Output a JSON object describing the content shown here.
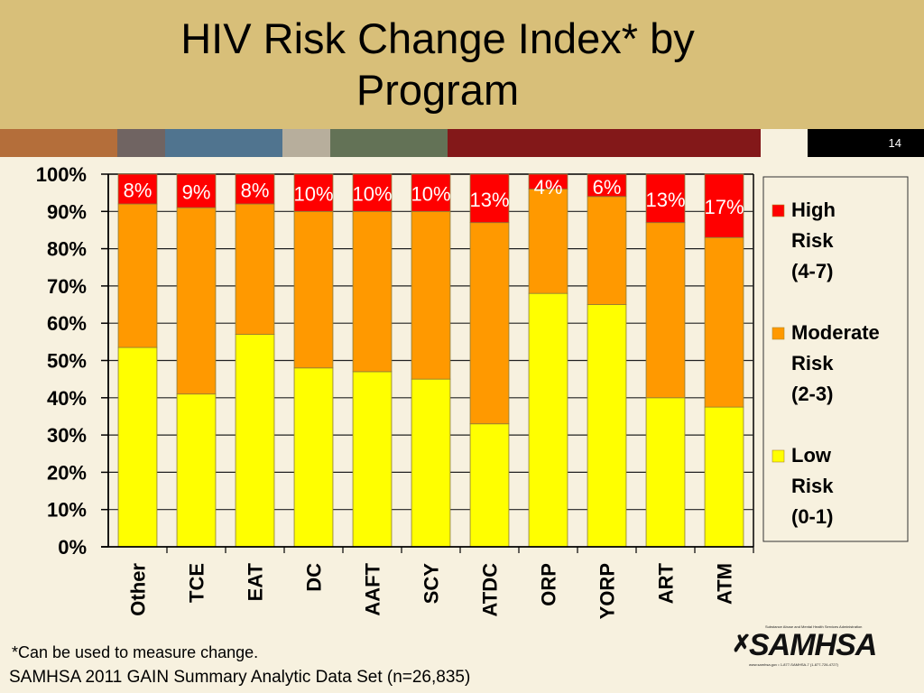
{
  "header": {
    "title_line1": "HIV Risk Change Index* by",
    "title_line2": "Program",
    "page_number": "14",
    "stripe_colors": [
      "#b46e3a",
      "#706462",
      "#50748f",
      "#b7ae9c",
      "#637256",
      "#831819",
      "#f7f1df"
    ]
  },
  "footer": {
    "footnote": "*Can be used to measure change.",
    "source": "SAMHSA 2011 GAIN Summary Analytic Data Set (n=26,835)",
    "logo": {
      "wordmark": "SAMHSA",
      "tagline": "Substance Abuse and Mental Health Services Administration",
      "contact": "www.samhsa.gov • 1-877-SAMHSA-7 (1-877-726-4727)"
    }
  },
  "chart_data": {
    "type": "bar",
    "stacked": true,
    "percent_stacked": true,
    "title": "HIV Risk Change Index* by Program",
    "xlabel": "",
    "ylabel": "",
    "ylim": [
      0,
      100
    ],
    "yticks": [
      "0%",
      "10%",
      "20%",
      "30%",
      "40%",
      "50%",
      "60%",
      "70%",
      "80%",
      "90%",
      "100%"
    ],
    "grid": true,
    "legend_position": "right",
    "categories": [
      "Other",
      "TCE",
      "EAT",
      "DC",
      "AAFT",
      "SCY",
      "ATDC",
      "ORP",
      "YORP",
      "ART",
      "ATM"
    ],
    "series": [
      {
        "name": "Low Risk (0-1)",
        "legend_lines": [
          "Low",
          "Risk",
          "(0-1)"
        ],
        "color": "#ffff00",
        "values": [
          53.5,
          41,
          57,
          48,
          47,
          45,
          33,
          68,
          65,
          40,
          37.5
        ]
      },
      {
        "name": "Moderate Risk (2-3)",
        "legend_lines": [
          "Moderate",
          "Risk",
          "(2-3)"
        ],
        "color": "#ff9900",
        "values": [
          38.5,
          50,
          35,
          42,
          43,
          45,
          54,
          28,
          29,
          47,
          45.5
        ]
      },
      {
        "name": "High Risk (4-7)",
        "legend_lines": [
          "High",
          "Risk",
          "(4-7)"
        ],
        "color": "#ff0000",
        "values": [
          8,
          9,
          8,
          10,
          10,
          10,
          13,
          4,
          6,
          13,
          17
        ]
      }
    ],
    "data_labels": [
      "8%",
      "9%",
      "8%",
      "10%",
      "10%",
      "10%",
      "13%",
      "4%",
      "6%",
      "13%",
      "17%"
    ]
  }
}
